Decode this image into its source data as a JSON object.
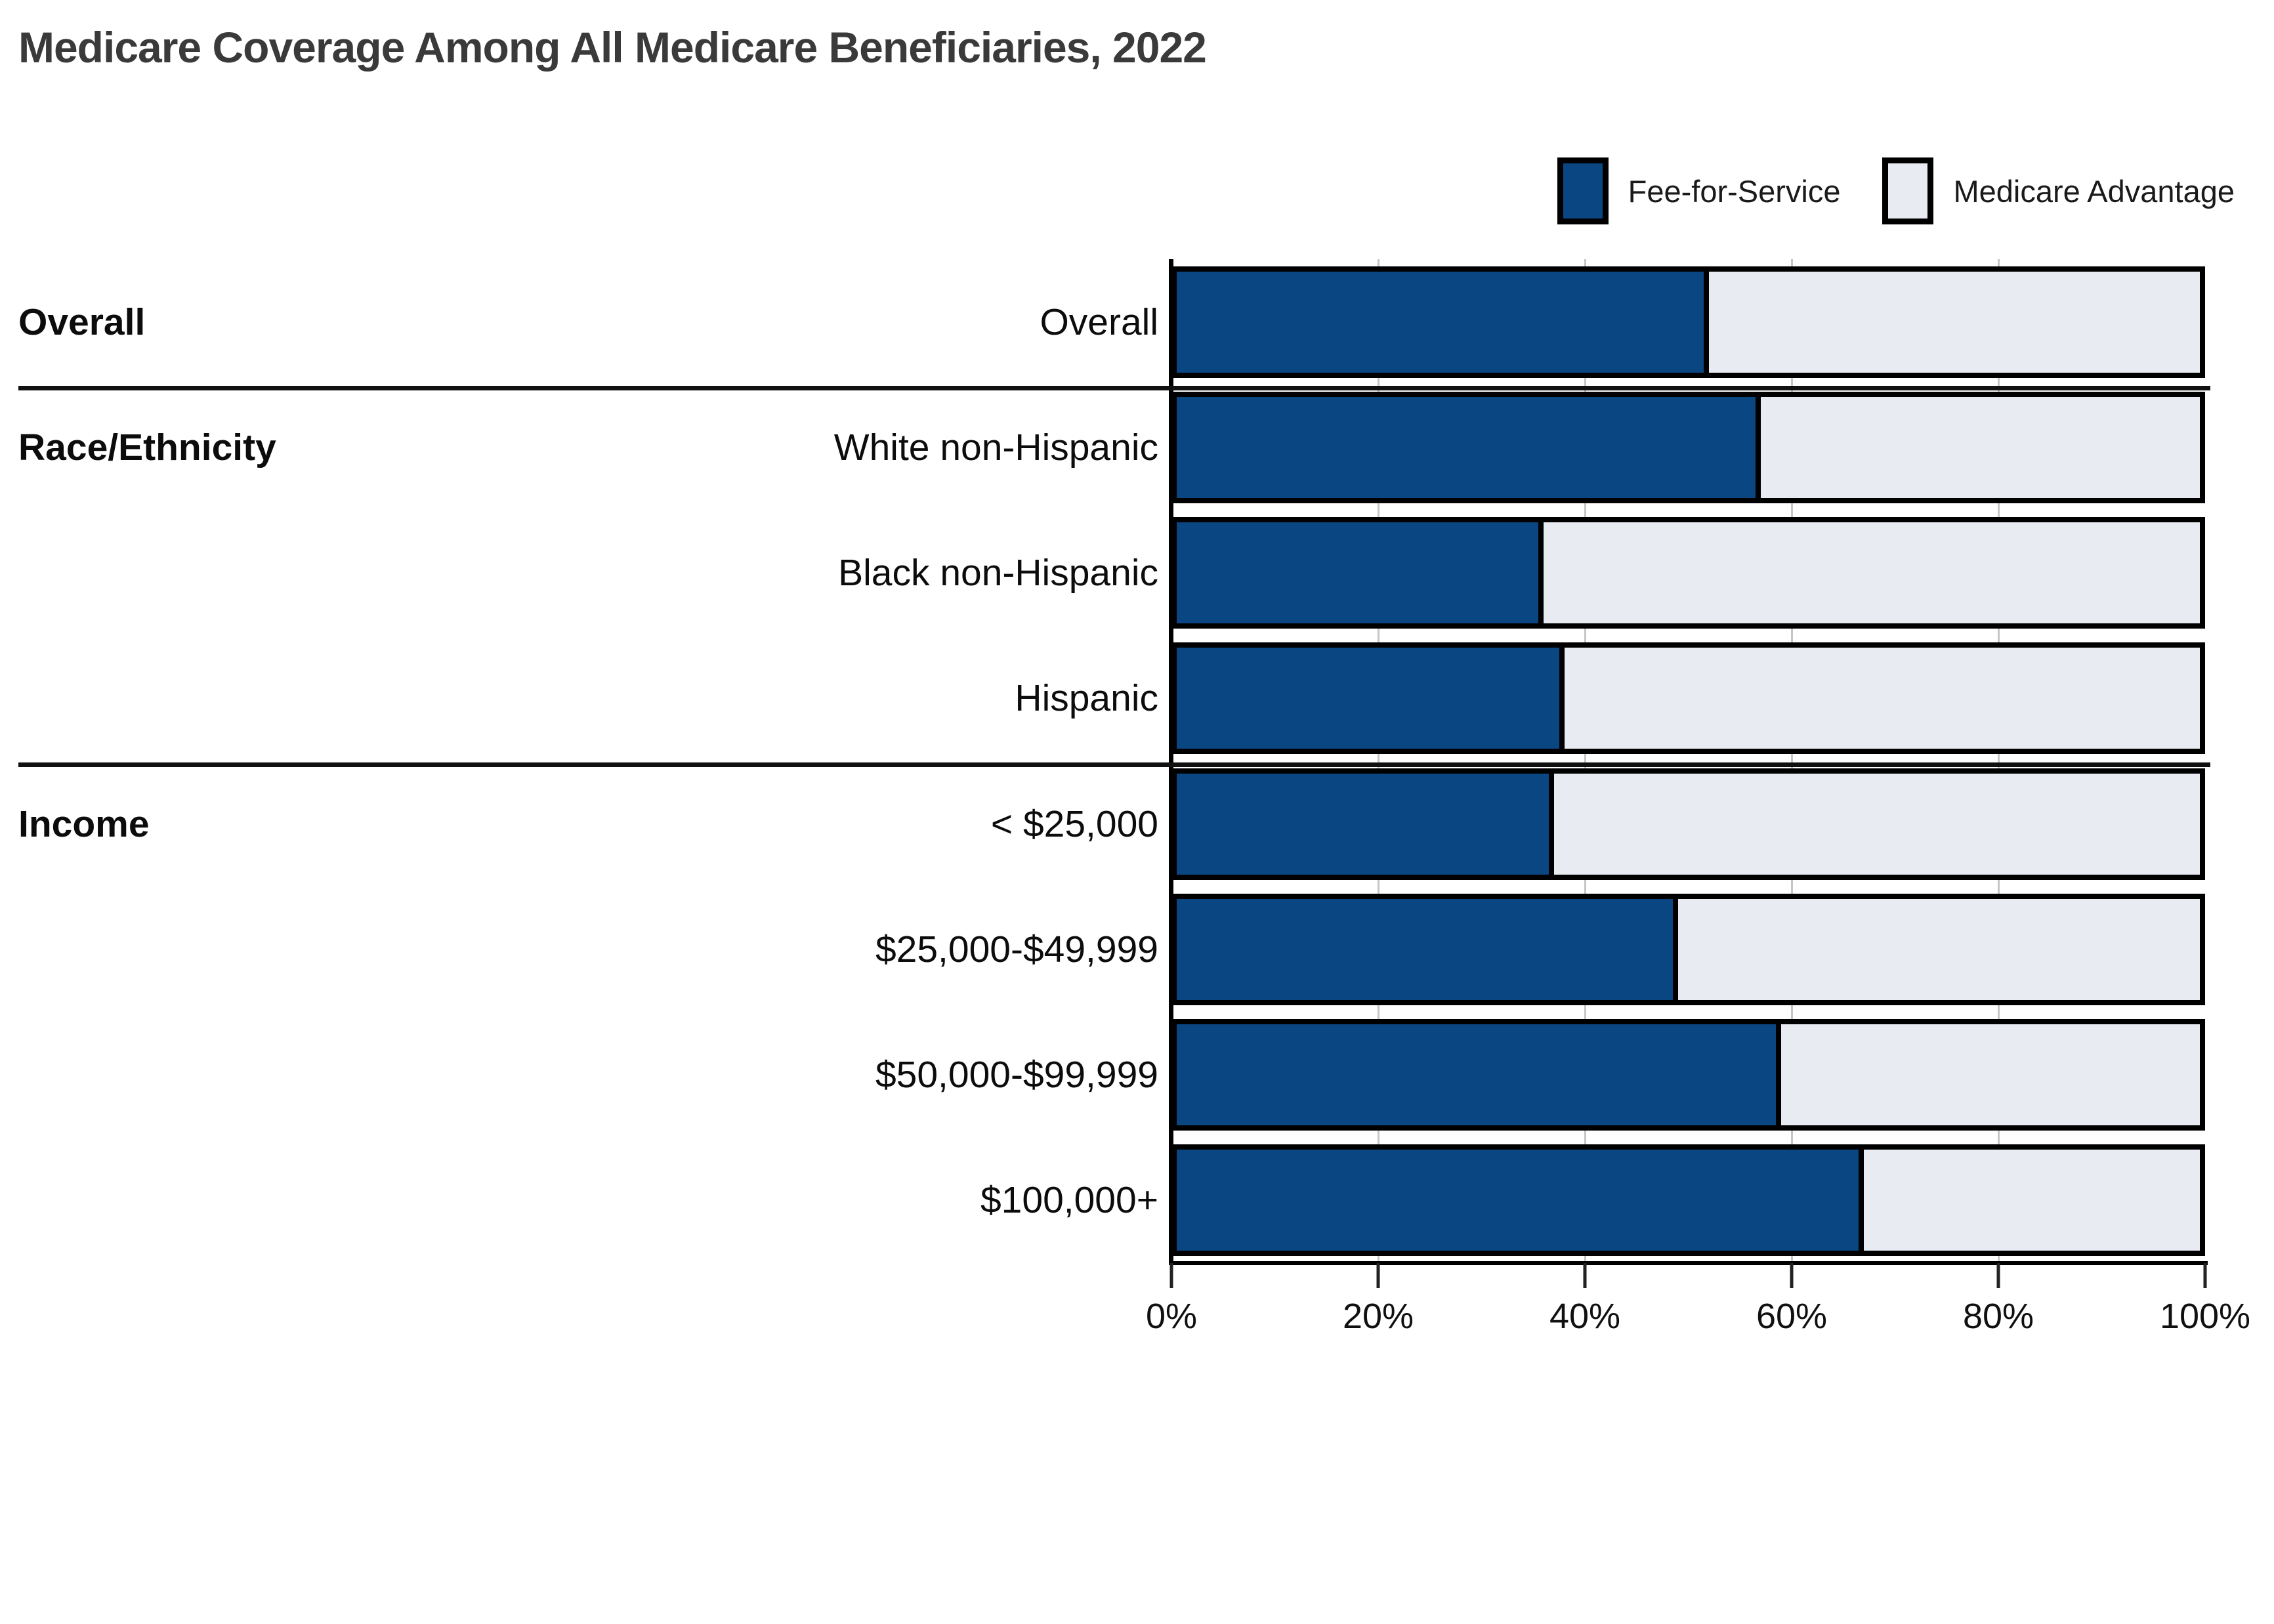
{
  "title": "Medicare Coverage Among All Medicare Beneficiaries, 2022",
  "legend": {
    "items": [
      {
        "label": "Fee-for-Service",
        "color": "#0a4681"
      },
      {
        "label": "Medicare Advantage",
        "color": "#e8ebf2"
      }
    ]
  },
  "chart_data": {
    "type": "bar",
    "stacked": true,
    "orientation": "horizontal",
    "title": "Medicare Coverage Among All Medicare Beneficiaries, 2022",
    "categories": [
      "Overall",
      "White non-Hispanic",
      "Black non-Hispanic",
      "Hispanic",
      "< $25,000",
      "$25,000-$49,999",
      "$50,000-$99,999",
      "$100,000+"
    ],
    "sections": [
      {
        "label": "Overall",
        "rows": [
          0
        ]
      },
      {
        "label": "Race/Ethnicity",
        "rows": [
          1,
          2,
          3
        ]
      },
      {
        "label": "Income",
        "rows": [
          4,
          5,
          6,
          7
        ]
      }
    ],
    "series": [
      {
        "name": "Fee-for-Service",
        "color": "#0a4681",
        "values": [
          52,
          57,
          36,
          38,
          37,
          49,
          59,
          67
        ]
      },
      {
        "name": "Medicare Advantage",
        "color": "#e8ebf2",
        "values": [
          48,
          43,
          64,
          62,
          63,
          51,
          41,
          33
        ]
      }
    ],
    "x_ticks": [
      {
        "label": "0%",
        "value": 0
      },
      {
        "label": "20%",
        "value": 20
      },
      {
        "label": "40%",
        "value": 40
      },
      {
        "label": "60%",
        "value": 60
      },
      {
        "label": "80%",
        "value": 80
      },
      {
        "label": "100%",
        "value": 100
      }
    ],
    "xlim": [
      0,
      100
    ],
    "grid": true,
    "gridline_values": [
      20,
      40,
      60,
      80
    ],
    "legend_position": "top-right",
    "bar_border_color": "#000000",
    "gridline_color": "#c6c6c6"
  }
}
